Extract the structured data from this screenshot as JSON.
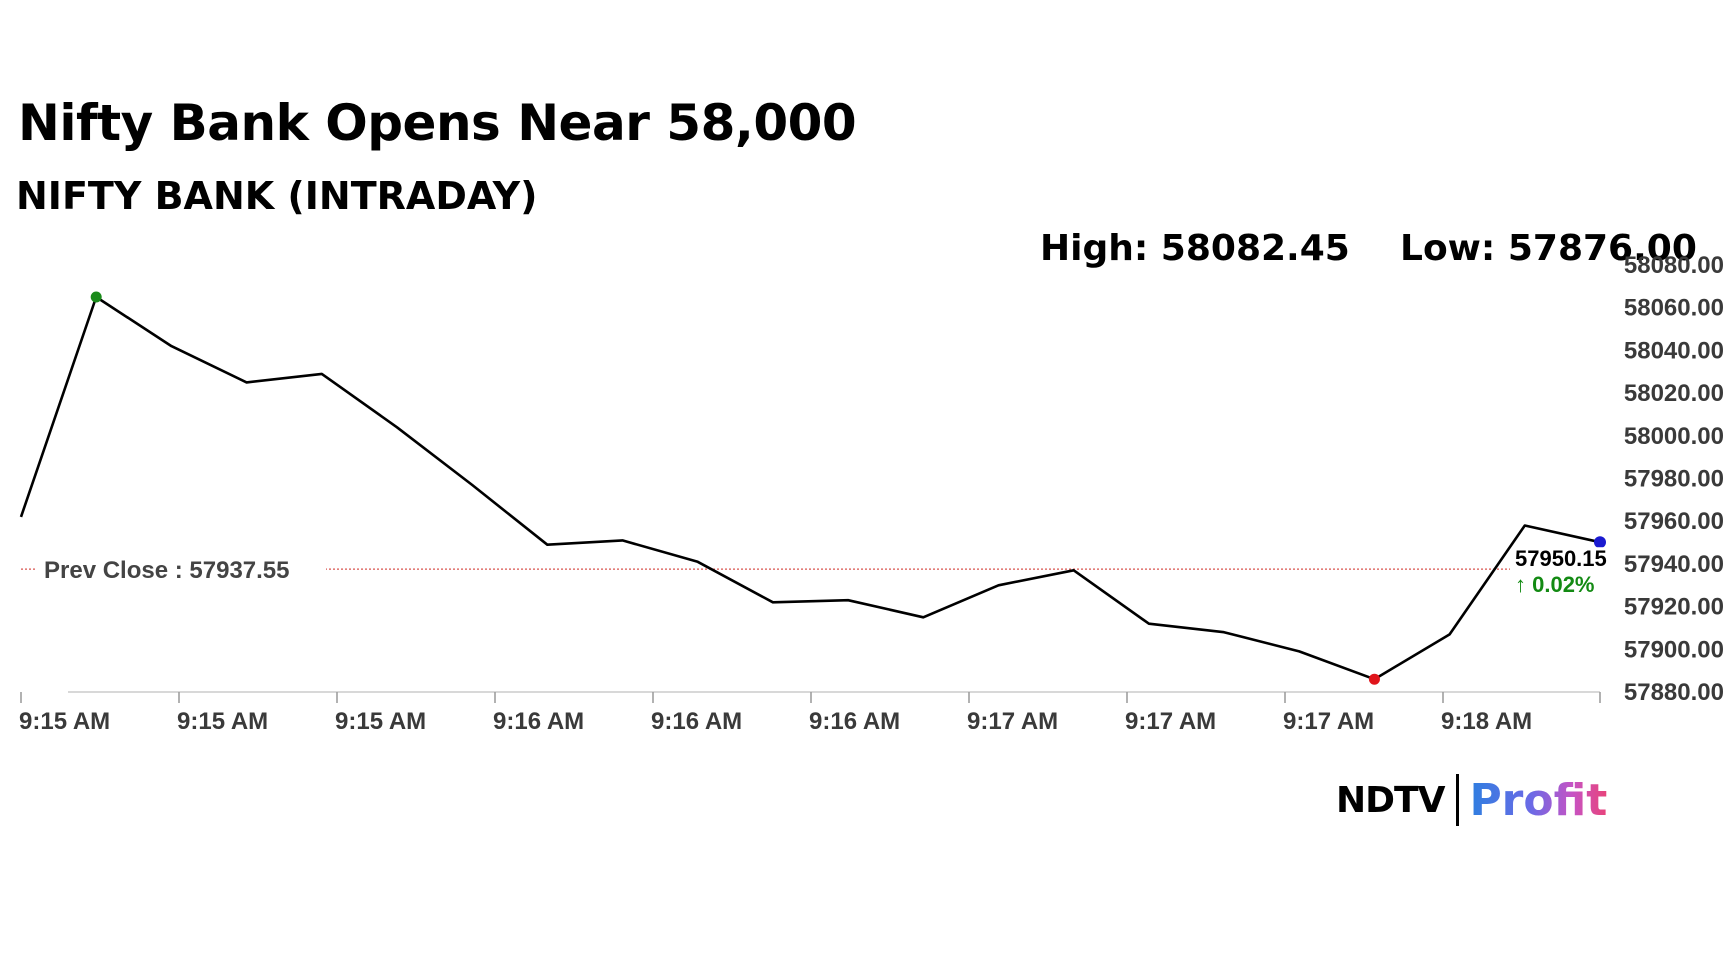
{
  "title": "Nifty Bank Opens Near 58,000",
  "subtitle": "NIFTY BANK (INTRADAY)",
  "stats": {
    "high": "High: 58082.45",
    "low": "Low: 57876.00"
  },
  "prev_close_label": "Prev Close : 57937.55",
  "last": {
    "value": "57950.15",
    "change": "↑ 0.02%"
  },
  "logo": {
    "ndtv": "NDTV",
    "profit": "Profit"
  },
  "colors": {
    "line": "#000000",
    "prev_close_line": "#d9534f",
    "high_marker": "#1a8a1a",
    "low_marker": "#e0141b",
    "last_marker": "#1a1ad0",
    "change_up": "#138a13"
  },
  "chart_data": {
    "type": "line",
    "title": "NIFTY BANK (INTRADAY)",
    "xlabel": "",
    "ylabel": "",
    "x_tick_labels": [
      "9:15 AM",
      "9:15 AM",
      "9:15 AM",
      "9:16 AM",
      "9:16 AM",
      "9:16 AM",
      "9:17 AM",
      "9:17 AM",
      "9:17 AM",
      "9:18 AM"
    ],
    "y_tick_labels": [
      "58080.00",
      "58060.00",
      "58040.00",
      "58020.00",
      "58000.00",
      "57980.00",
      "57960.00",
      "57940.00",
      "57920.00",
      "57900.00",
      "57880.00"
    ],
    "ylim": [
      57880,
      58080
    ],
    "y_axis_side": "right",
    "prev_close": 57937.55,
    "series": [
      {
        "values": [
          57962,
          58065,
          58042,
          58025,
          58029,
          58004,
          57977,
          57949,
          57951,
          57941,
          57922,
          57923,
          57915,
          57930,
          57937,
          57912,
          57908,
          57899,
          57886,
          57907,
          57958,
          57950.15
        ]
      }
    ],
    "markers": {
      "high_index": 1,
      "low_index": 18,
      "last_index": 21
    },
    "grid": false
  }
}
